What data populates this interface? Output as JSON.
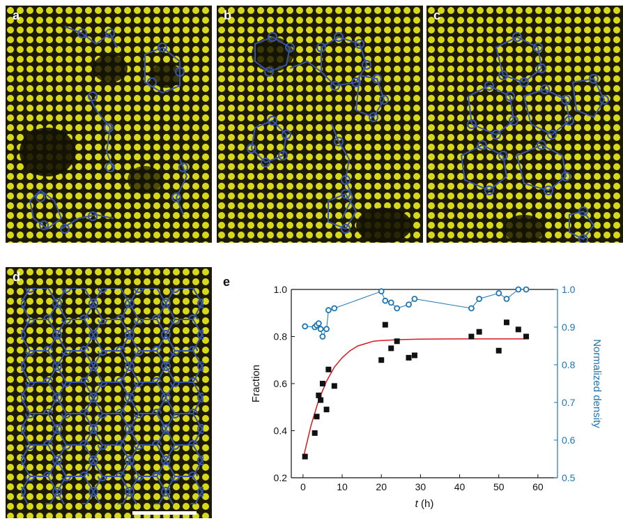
{
  "panels": [
    {
      "label": "a"
    },
    {
      "label": "b"
    },
    {
      "label": "c"
    },
    {
      "label": "d"
    }
  ],
  "colors": {
    "image_background": "#1c1a05",
    "atoms": "#e4e41a",
    "overlay_lines": "#3553a8",
    "scalebar": "#ffffff"
  },
  "chart_label": "e",
  "chart_data": {
    "type": "scatter",
    "xlabel_italic": "t",
    "xlabel_unit": " (h)",
    "ylabel_left": "Fraction",
    "ylabel_right": "Normalized density",
    "xlim": [
      -3,
      65
    ],
    "ylim_left": [
      0.2,
      1.0
    ],
    "ylim_right": [
      0.5,
      1.0
    ],
    "xticks": [
      "0",
      "10",
      "20",
      "30",
      "40",
      "50",
      "60"
    ],
    "yticks_left": [
      "0.2",
      "0.4",
      "0.6",
      "0.8",
      "1.0"
    ],
    "yticks_right": [
      "0.5",
      "0.6",
      "0.7",
      "0.8",
      "0.9",
      "1.0"
    ],
    "colors": {
      "fraction": "#111111",
      "fit": "#d7191c",
      "density": "#1a75b3"
    },
    "series": [
      {
        "axis": "left",
        "marker": "filled-square",
        "x": [
          0.5,
          3,
          3.5,
          4,
          4.5,
          5,
          6,
          6.5,
          8,
          20,
          21,
          22.5,
          24,
          27,
          28.5,
          43,
          45,
          50,
          52,
          55,
          57
        ],
        "y": [
          0.29,
          0.39,
          0.46,
          0.55,
          0.53,
          0.6,
          0.49,
          0.66,
          0.59,
          0.7,
          0.85,
          0.75,
          0.78,
          0.71,
          0.72,
          0.8,
          0.82,
          0.74,
          0.86,
          0.83,
          0.8
        ]
      },
      {
        "axis": "right",
        "marker": "open-circle",
        "line": "thin",
        "x": [
          0.5,
          3,
          3.5,
          4,
          4.5,
          5,
          6,
          6.5,
          8,
          20,
          21,
          22.5,
          24,
          27,
          28.5,
          43,
          45,
          50,
          52,
          55,
          57
        ],
        "y": [
          0.902,
          0.9,
          0.905,
          0.91,
          0.895,
          0.875,
          0.895,
          0.945,
          0.95,
          0.995,
          0.97,
          0.965,
          0.95,
          0.96,
          0.975,
          0.95,
          0.975,
          0.99,
          0.975,
          1.0,
          1.0
        ]
      },
      {
        "axis": "left",
        "type": "fit-curve",
        "x": [
          0,
          2,
          4,
          6,
          8,
          10,
          12,
          14,
          16,
          18,
          20,
          25,
          30,
          40,
          50,
          57
        ],
        "y": [
          0.28,
          0.42,
          0.53,
          0.61,
          0.67,
          0.71,
          0.74,
          0.76,
          0.77,
          0.78,
          0.783,
          0.787,
          0.789,
          0.79,
          0.79,
          0.79
        ]
      }
    ]
  }
}
